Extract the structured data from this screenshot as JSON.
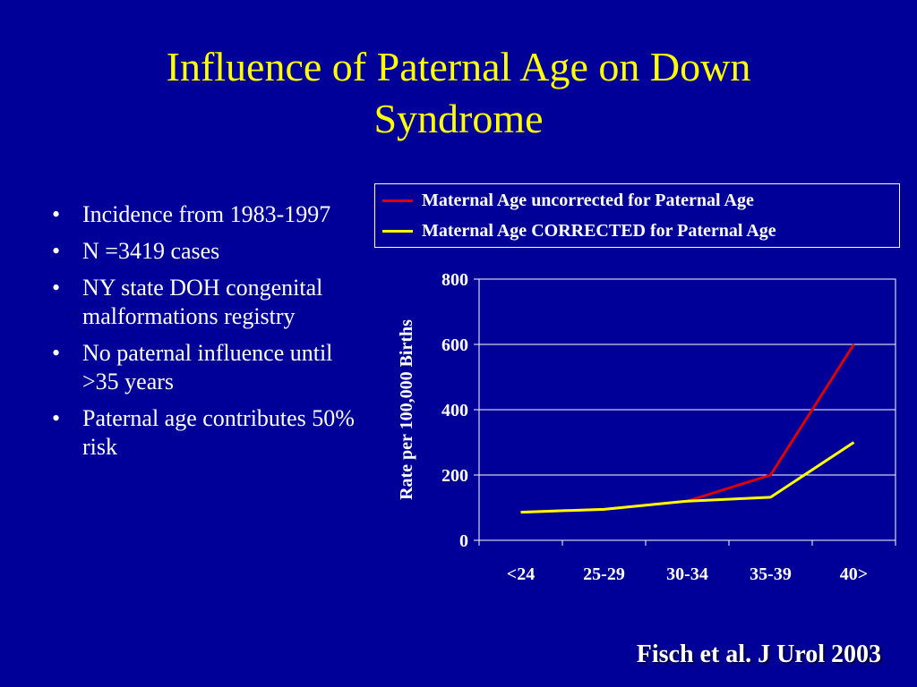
{
  "slide": {
    "title_line1": "Influence of Paternal Age on Down",
    "title_line2": "Syndrome",
    "bullets": [
      "Incidence from 1983-1997",
      "N =3419 cases",
      "NY state DOH congenital malformations registry",
      "No paternal influence until >35 years",
      "Paternal age contributes 50% risk"
    ],
    "bullet_char": "•",
    "citation": "Fisch et al. J Urol 2003"
  },
  "colors": {
    "background": "#000099",
    "title": "#ffff00",
    "text": "#ffffff",
    "series_uncorrected": "#dd0000",
    "series_corrected": "#ffff00"
  },
  "chart_data": {
    "type": "line",
    "title": "",
    "xlabel": "",
    "ylabel": "Rate per 100,000 Births",
    "categories": [
      "<24",
      "25-29",
      "30-34",
      "35-39",
      "40>"
    ],
    "ylim": [
      0,
      800
    ],
    "yticks": [
      0,
      200,
      400,
      600,
      800
    ],
    "grid": true,
    "legend_position": "top",
    "series": [
      {
        "name": "Maternal Age uncorrected for Paternal Age",
        "color": "#dd0000",
        "values": [
          86,
          95,
          120,
          200,
          600
        ]
      },
      {
        "name": "Maternal Age CORRECTED for Paternal Age",
        "color": "#ffff00",
        "values": [
          86,
          95,
          120,
          132,
          300
        ]
      }
    ]
  }
}
